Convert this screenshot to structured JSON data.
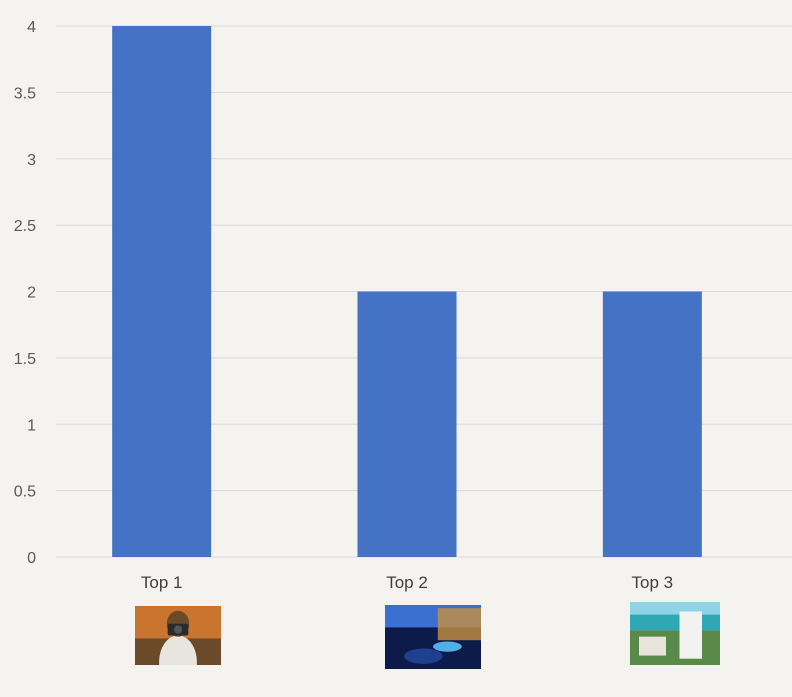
{
  "chart_data": {
    "type": "bar",
    "categories": [
      "Top 1",
      "Top 2",
      "Top 3"
    ],
    "values": [
      4,
      2,
      2
    ],
    "title": "",
    "xlabel": "",
    "ylabel": "",
    "ylim": [
      0,
      4
    ],
    "yticks": [
      "0",
      "0.5",
      "1",
      "1.5",
      "2",
      "2.5",
      "3",
      "3.5",
      "4"
    ],
    "grid": true,
    "legend": "none",
    "colors": {
      "bar": "#4472c4",
      "grid": "#d9d9d9",
      "background": "#f5f3ef"
    },
    "category_images": [
      {
        "name": "photographer-photo",
        "palette": [
          "#c9742f",
          "#6b4a2a",
          "#e8e4de",
          "#2a2a2a"
        ]
      },
      {
        "name": "resort-night-photo",
        "palette": [
          "#1f3f8f",
          "#0d1b4a",
          "#3b6fd0",
          "#c89040"
        ]
      },
      {
        "name": "beach-hotel-photo",
        "palette": [
          "#8fd3e6",
          "#2fa7b5",
          "#f2f2f0",
          "#5a8a4a"
        ]
      }
    ]
  }
}
